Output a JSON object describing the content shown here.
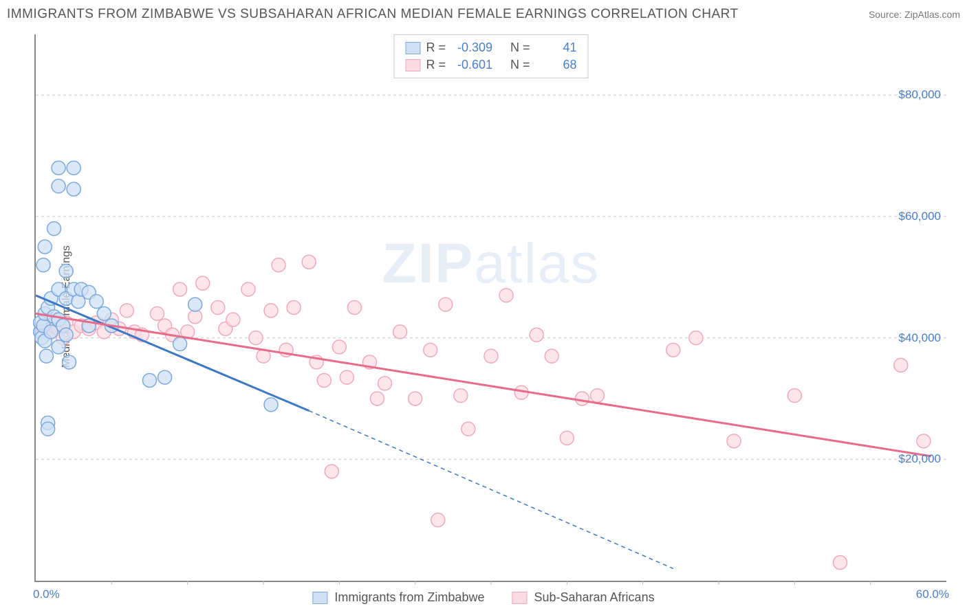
{
  "header": {
    "title": "IMMIGRANTS FROM ZIMBABWE VS SUBSAHARAN AFRICAN MEDIAN FEMALE EARNINGS CORRELATION CHART",
    "source": "Source: ZipAtlas.com"
  },
  "watermark": {
    "part1": "ZIP",
    "part2": "atlas"
  },
  "chart": {
    "type": "scatter",
    "ylabel": "Median Female Earnings",
    "xlim": [
      0,
      60
    ],
    "ylim": [
      0,
      90000
    ],
    "yticks": [
      20000,
      40000,
      60000,
      80000
    ],
    "ytick_labels": [
      "$20,000",
      "$40,000",
      "$60,000",
      "$80,000"
    ],
    "xtick_positions": [
      5,
      10,
      15,
      20,
      25,
      30,
      35,
      40,
      45,
      50,
      55
    ],
    "xtick_labels": {
      "start": "0.0%",
      "end": "60.0%"
    },
    "background_color": "#ffffff",
    "grid_color": "#d8d8d8",
    "marker_radius": 10,
    "marker_stroke_width": 1.5,
    "line_width": 3,
    "series": [
      {
        "name": "Immigrants from Zimbabwe",
        "color_fill": "#cfe0f4",
        "color_stroke": "#7ba8dd",
        "line_color": "#3c78c3",
        "R": "-0.309",
        "N": "41",
        "trend": {
          "x1": 0,
          "y1": 47000,
          "x2": 18,
          "y2": 28000,
          "ext_x2": 42,
          "ext_y2": 2000
        },
        "points": [
          [
            0.3,
            41000
          ],
          [
            0.3,
            42500
          ],
          [
            0.4,
            40000
          ],
          [
            0.5,
            52000
          ],
          [
            0.5,
            42000
          ],
          [
            0.6,
            55000
          ],
          [
            0.6,
            44000
          ],
          [
            0.6,
            39500
          ],
          [
            0.7,
            37000
          ],
          [
            0.8,
            45000
          ],
          [
            0.8,
            26000
          ],
          [
            0.8,
            25000
          ],
          [
            1.0,
            46500
          ],
          [
            1.0,
            41000
          ],
          [
            1.2,
            43500
          ],
          [
            1.2,
            58000
          ],
          [
            1.5,
            68000
          ],
          [
            1.5,
            65000
          ],
          [
            1.5,
            48000
          ],
          [
            1.5,
            43000
          ],
          [
            1.5,
            38500
          ],
          [
            1.8,
            42000
          ],
          [
            2.0,
            51000
          ],
          [
            2.0,
            46500
          ],
          [
            2.0,
            40500
          ],
          [
            2.2,
            36000
          ],
          [
            2.5,
            68000
          ],
          [
            2.5,
            64500
          ],
          [
            2.5,
            48000
          ],
          [
            2.8,
            46000
          ],
          [
            3.0,
            48000
          ],
          [
            3.5,
            42000
          ],
          [
            3.5,
            47500
          ],
          [
            4.0,
            46000
          ],
          [
            4.5,
            44000
          ],
          [
            5.0,
            42000
          ],
          [
            7.5,
            33000
          ],
          [
            8.5,
            33500
          ],
          [
            9.5,
            39000
          ],
          [
            10.5,
            45500
          ],
          [
            15.5,
            29000
          ]
        ]
      },
      {
        "name": "Sub-Saharan Africans",
        "color_fill": "#fbdce4",
        "color_stroke": "#f0a9ba",
        "line_color": "#e86b8a",
        "R": "-0.601",
        "N": "68",
        "trend": {
          "x1": 0,
          "y1": 44000,
          "x2": 59,
          "y2": 20500,
          "ext_x2": 59,
          "ext_y2": 20500
        },
        "points": [
          [
            0.5,
            41000
          ],
          [
            0.6,
            40500
          ],
          [
            0.8,
            41500
          ],
          [
            1.0,
            41000
          ],
          [
            1.2,
            42000
          ],
          [
            1.5,
            41500
          ],
          [
            1.5,
            43000
          ],
          [
            1.8,
            40000
          ],
          [
            2.0,
            42500
          ],
          [
            2.5,
            41000
          ],
          [
            3.0,
            42000
          ],
          [
            3.5,
            41500
          ],
          [
            4.0,
            42500
          ],
          [
            4.5,
            41000
          ],
          [
            5.0,
            43000
          ],
          [
            5.5,
            41500
          ],
          [
            6.0,
            44500
          ],
          [
            6.5,
            41000
          ],
          [
            7.0,
            40500
          ],
          [
            8.0,
            44000
          ],
          [
            8.5,
            42000
          ],
          [
            9.0,
            40500
          ],
          [
            9.5,
            48000
          ],
          [
            10.0,
            41000
          ],
          [
            10.5,
            43500
          ],
          [
            11.0,
            49000
          ],
          [
            12.0,
            45000
          ],
          [
            12.5,
            41500
          ],
          [
            13.0,
            43000
          ],
          [
            14.0,
            48000
          ],
          [
            14.5,
            40000
          ],
          [
            15.0,
            37000
          ],
          [
            15.5,
            44500
          ],
          [
            16.0,
            52000
          ],
          [
            16.5,
            38000
          ],
          [
            17.0,
            45000
          ],
          [
            18.0,
            52500
          ],
          [
            18.5,
            36000
          ],
          [
            19.0,
            33000
          ],
          [
            19.5,
            18000
          ],
          [
            20.0,
            38500
          ],
          [
            20.5,
            33500
          ],
          [
            21.0,
            45000
          ],
          [
            22.0,
            36000
          ],
          [
            22.5,
            30000
          ],
          [
            23.0,
            32500
          ],
          [
            24.0,
            41000
          ],
          [
            25.0,
            30000
          ],
          [
            26.0,
            38000
          ],
          [
            26.5,
            10000
          ],
          [
            27.0,
            45500
          ],
          [
            28.0,
            30500
          ],
          [
            28.5,
            25000
          ],
          [
            30.0,
            37000
          ],
          [
            31.0,
            47000
          ],
          [
            32.0,
            31000
          ],
          [
            33.0,
            40500
          ],
          [
            34.0,
            37000
          ],
          [
            35.0,
            23500
          ],
          [
            36.0,
            30000
          ],
          [
            37.0,
            30500
          ],
          [
            42.0,
            38000
          ],
          [
            43.5,
            40000
          ],
          [
            46.0,
            23000
          ],
          [
            50.0,
            30500
          ],
          [
            53.0,
            3000
          ],
          [
            57.0,
            35500
          ],
          [
            58.5,
            23000
          ]
        ]
      }
    ]
  },
  "legend": {
    "R_label": "R = ",
    "N_label": "N = "
  }
}
